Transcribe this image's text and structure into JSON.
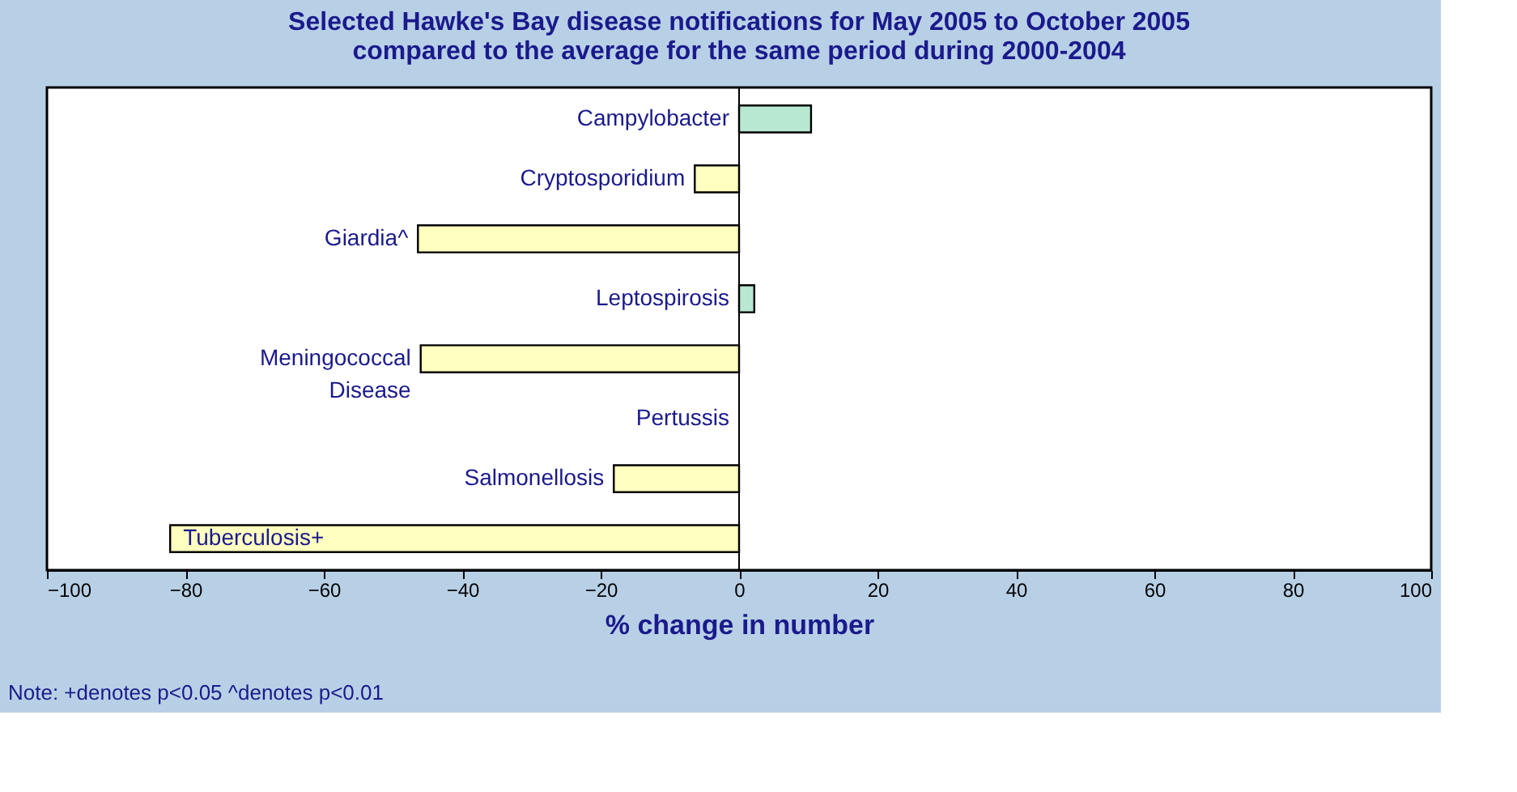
{
  "chart_data": {
    "type": "bar",
    "orientation": "horizontal",
    "title": [
      "Selected Hawke's Bay disease notifications for May 2005 to October 2005",
      "compared to the average for the same period during 2000-2004"
    ],
    "xlabel": "% change in number",
    "categories": [
      "Campylobacter",
      "Cryptosporidium",
      "Giardia^",
      "Leptospirosis",
      "Meningococcal Disease",
      "Pertussis",
      "Salmonellosis",
      "Tuberculosis+"
    ],
    "values": [
      10.4,
      -6.4,
      -46.4,
      2.2,
      -46,
      0,
      -18.1,
      -82.2
    ],
    "colors": [
      "#b8e8d2",
      "#ffffc0",
      "#ffffc0",
      "#b8e8d2",
      "#ffffc0",
      "#ffffc0",
      "#ffffc0",
      "#ffffc0"
    ],
    "xlim": [
      -100,
      100
    ],
    "xticks": [
      -100,
      -80,
      -60,
      -40,
      -20,
      0,
      20,
      40,
      60,
      80,
      100
    ],
    "grid": false,
    "annotations": [
      "Note: +denotes p<0.05  ^denotes p<0.01"
    ]
  }
}
